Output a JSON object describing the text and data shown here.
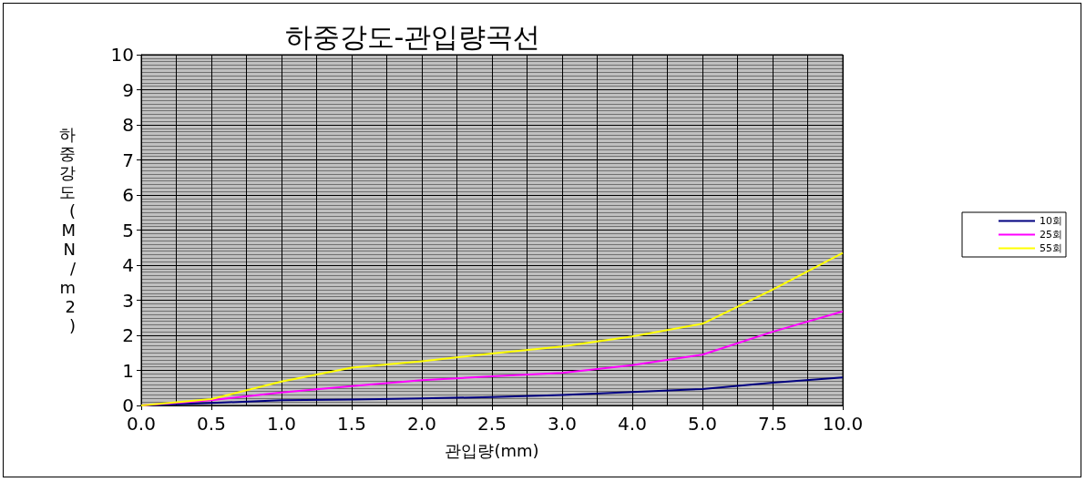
{
  "chart_data": {
    "type": "line",
    "title": "하중강도-관입량곡선",
    "xlabel": "관입량(mm)",
    "ylabel": "하중강도(MN/m2)",
    "categories": [
      "0.0",
      "0.5",
      "1.0",
      "1.5",
      "2.0",
      "2.5",
      "3.0",
      "4.0",
      "5.0",
      "7.5",
      "10.0"
    ],
    "series": [
      {
        "name": "10회",
        "color": "#000080",
        "values": [
          0,
          0.07,
          0.15,
          0.17,
          0.2,
          0.24,
          0.3,
          0.38,
          0.47,
          0.65,
          0.8
        ]
      },
      {
        "name": "25회",
        "color": "#ff00ff",
        "values": [
          0,
          0.15,
          0.37,
          0.55,
          0.72,
          0.83,
          0.93,
          1.15,
          1.45,
          2.1,
          2.68
        ]
      },
      {
        "name": "55회",
        "color": "#ffff00",
        "values": [
          0,
          0.18,
          0.68,
          1.08,
          1.26,
          1.48,
          1.68,
          1.97,
          2.33,
          3.3,
          4.35
        ]
      }
    ],
    "ylim": [
      0,
      10
    ],
    "yticks": [
      0,
      1,
      2,
      3,
      4,
      5,
      6,
      7,
      8,
      9,
      10
    ],
    "grid": true,
    "legend": "right",
    "marker": "none",
    "line_style": "solid"
  }
}
